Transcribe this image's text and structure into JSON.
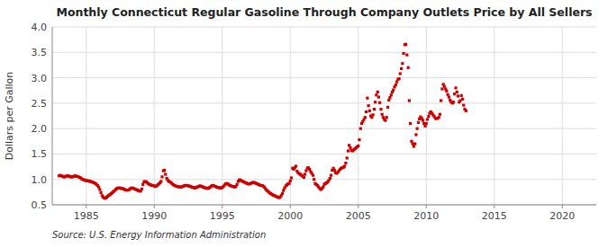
{
  "chart_data": {
    "type": "scatter",
    "title": "Monthly Connecticut Regular Gasoline Through Company Outlets Price by All Sellers",
    "y_label": "Dollars per Gallon",
    "annotations": [
      "Source: U.S. Energy Information Administration"
    ],
    "color": "#cc0000",
    "marker": "square",
    "grid": true,
    "xlim": [
      1982.5,
      2022.5
    ],
    "ylim": [
      0.5,
      4.0
    ],
    "xticks": [
      1985,
      1990,
      1995,
      2000,
      2005,
      2010,
      2015,
      2020
    ],
    "yticks": [
      0.5,
      {
        "value": 1.0,
        "label": "1.0"
      },
      1.5,
      {
        "value": 2.0,
        "label": "2.0"
      },
      2.5,
      {
        "value": 3.0,
        "label": "3.0"
      },
      3.5,
      {
        "value": 4.0,
        "label": "4.0"
      }
    ],
    "x": [
      1983.0,
      1983.08,
      1983.17,
      1983.25,
      1983.33,
      1983.42,
      1983.5,
      1983.58,
      1983.67,
      1983.75,
      1983.83,
      1983.92,
      1984.0,
      1984.08,
      1984.17,
      1984.25,
      1984.33,
      1984.42,
      1984.5,
      1984.58,
      1984.67,
      1984.75,
      1984.83,
      1984.92,
      1985.0,
      1985.08,
      1985.17,
      1985.25,
      1985.33,
      1985.42,
      1985.5,
      1985.58,
      1985.67,
      1985.75,
      1985.83,
      1985.92,
      1986.0,
      1986.08,
      1986.17,
      1986.25,
      1986.33,
      1986.42,
      1986.5,
      1986.58,
      1986.67,
      1986.75,
      1986.83,
      1986.92,
      1987.0,
      1987.08,
      1987.17,
      1987.25,
      1987.33,
      1987.42,
      1987.5,
      1987.58,
      1987.67,
      1987.75,
      1987.83,
      1987.92,
      1988.0,
      1988.08,
      1988.17,
      1988.25,
      1988.33,
      1988.42,
      1988.5,
      1988.58,
      1988.67,
      1988.75,
      1988.83,
      1988.92,
      1989.0,
      1989.08,
      1989.17,
      1989.25,
      1989.33,
      1989.42,
      1989.5,
      1989.58,
      1989.67,
      1989.75,
      1989.83,
      1989.92,
      1990.0,
      1990.08,
      1990.17,
      1990.25,
      1990.33,
      1990.42,
      1990.5,
      1990.58,
      1990.67,
      1990.75,
      1990.83,
      1990.92,
      1991.0,
      1991.08,
      1991.17,
      1991.25,
      1991.33,
      1991.42,
      1991.5,
      1991.58,
      1991.67,
      1991.75,
      1991.83,
      1991.92,
      1992.0,
      1992.08,
      1992.17,
      1992.25,
      1992.33,
      1992.42,
      1992.5,
      1992.58,
      1992.67,
      1992.75,
      1992.83,
      1992.92,
      1993.0,
      1993.08,
      1993.17,
      1993.25,
      1993.33,
      1993.42,
      1993.5,
      1993.58,
      1993.67,
      1993.75,
      1993.83,
      1993.92,
      1994.0,
      1994.08,
      1994.17,
      1994.25,
      1994.33,
      1994.42,
      1994.5,
      1994.58,
      1994.67,
      1994.75,
      1994.83,
      1994.92,
      1995.0,
      1995.08,
      1995.17,
      1995.25,
      1995.33,
      1995.42,
      1995.5,
      1995.58,
      1995.67,
      1995.75,
      1995.83,
      1995.92,
      1996.0,
      1996.08,
      1996.17,
      1996.25,
      1996.33,
      1996.42,
      1996.5,
      1996.58,
      1996.67,
      1996.75,
      1996.83,
      1996.92,
      1997.0,
      1997.08,
      1997.17,
      1997.25,
      1997.33,
      1997.42,
      1997.5,
      1997.58,
      1997.67,
      1997.75,
      1997.83,
      1997.92,
      1998.0,
      1998.08,
      1998.17,
      1998.25,
      1998.33,
      1998.42,
      1998.5,
      1998.58,
      1998.67,
      1998.75,
      1998.83,
      1998.92,
      1999.0,
      1999.08,
      1999.17,
      1999.25,
      1999.33,
      1999.42,
      1999.5,
      1999.58,
      1999.67,
      1999.75,
      1999.83,
      1999.92,
      2000.0,
      2000.08,
      2000.17,
      2000.25,
      2000.33,
      2000.42,
      2000.5,
      2000.58,
      2000.67,
      2000.75,
      2000.83,
      2000.92,
      2001.0,
      2001.08,
      2001.17,
      2001.25,
      2001.33,
      2001.42,
      2001.5,
      2001.58,
      2001.67,
      2001.75,
      2001.83,
      2001.92,
      2002.0,
      2002.08,
      2002.17,
      2002.25,
      2002.33,
      2002.42,
      2002.5,
      2002.58,
      2002.67,
      2002.75,
      2002.83,
      2002.92,
      2003.0,
      2003.08,
      2003.17,
      2003.25,
      2003.33,
      2003.42,
      2003.5,
      2003.58,
      2003.67,
      2003.75,
      2003.83,
      2003.92,
      2004.0,
      2004.08,
      2004.17,
      2004.25,
      2004.33,
      2004.42,
      2004.5,
      2004.58,
      2004.67,
      2004.75,
      2004.83,
      2004.92,
      2005.0,
      2005.08,
      2005.17,
      2005.25,
      2005.33,
      2005.42,
      2005.5,
      2005.58,
      2005.67,
      2005.75,
      2005.83,
      2005.92,
      2006.0,
      2006.08,
      2006.17,
      2006.25,
      2006.33,
      2006.42,
      2006.5,
      2006.58,
      2006.67,
      2006.75,
      2006.83,
      2006.92,
      2007.0,
      2007.08,
      2007.17,
      2007.25,
      2007.33,
      2007.42,
      2007.5,
      2007.58,
      2007.67,
      2007.75,
      2007.83,
      2007.92,
      2008.0,
      2008.08,
      2008.17,
      2008.25,
      2008.33,
      2008.42,
      2008.5,
      2008.58,
      2008.67,
      2008.75,
      2008.83,
      2008.92,
      2009.0,
      2009.08,
      2009.17,
      2009.25,
      2009.33,
      2009.42,
      2009.5,
      2009.58,
      2009.67,
      2009.75,
      2009.83,
      2009.92,
      2010.0,
      2010.08,
      2010.17,
      2010.25,
      2010.33,
      2010.42,
      2010.5,
      2010.58,
      2010.67,
      2010.75,
      2010.83,
      2010.92,
      2011.0,
      2011.08,
      2011.17,
      2011.25,
      2011.33,
      2011.42,
      2011.5,
      2011.58,
      2011.67,
      2011.75,
      2011.83,
      2011.92,
      2012.0,
      2012.08,
      2012.17,
      2012.25,
      2012.33,
      2012.42,
      2012.5,
      2012.58,
      2012.67,
      2012.75,
      2012.83,
      2012.92
    ],
    "values": [
      1.07,
      1.08,
      1.07,
      1.06,
      1.05,
      1.05,
      1.06,
      1.07,
      1.07,
      1.06,
      1.05,
      1.05,
      1.05,
      1.06,
      1.07,
      1.06,
      1.06,
      1.05,
      1.04,
      1.03,
      1.01,
      1.0,
      0.99,
      0.98,
      0.98,
      0.97,
      0.97,
      0.96,
      0.96,
      0.95,
      0.94,
      0.93,
      0.92,
      0.9,
      0.88,
      0.85,
      0.8,
      0.74,
      0.68,
      0.65,
      0.63,
      0.63,
      0.65,
      0.67,
      0.69,
      0.7,
      0.72,
      0.74,
      0.76,
      0.78,
      0.8,
      0.82,
      0.83,
      0.83,
      0.83,
      0.82,
      0.82,
      0.81,
      0.8,
      0.79,
      0.79,
      0.79,
      0.8,
      0.82,
      0.83,
      0.83,
      0.82,
      0.81,
      0.8,
      0.79,
      0.78,
      0.77,
      0.77,
      0.81,
      0.9,
      0.95,
      0.96,
      0.95,
      0.93,
      0.91,
      0.9,
      0.89,
      0.88,
      0.88,
      0.87,
      0.86,
      0.87,
      0.89,
      0.91,
      0.93,
      0.96,
      1.05,
      1.17,
      1.18,
      1.1,
      1.02,
      0.98,
      0.96,
      0.95,
      0.93,
      0.91,
      0.89,
      0.88,
      0.87,
      0.86,
      0.86,
      0.85,
      0.85,
      0.85,
      0.86,
      0.87,
      0.88,
      0.88,
      0.88,
      0.87,
      0.87,
      0.86,
      0.85,
      0.84,
      0.84,
      0.83,
      0.84,
      0.85,
      0.86,
      0.87,
      0.87,
      0.86,
      0.85,
      0.84,
      0.83,
      0.83,
      0.82,
      0.83,
      0.84,
      0.86,
      0.88,
      0.88,
      0.87,
      0.86,
      0.85,
      0.84,
      0.84,
      0.83,
      0.83,
      0.84,
      0.86,
      0.89,
      0.91,
      0.92,
      0.91,
      0.89,
      0.88,
      0.87,
      0.86,
      0.86,
      0.85,
      0.86,
      0.9,
      0.96,
      0.99,
      0.99,
      0.97,
      0.96,
      0.95,
      0.94,
      0.93,
      0.92,
      0.91,
      0.91,
      0.92,
      0.93,
      0.94,
      0.94,
      0.93,
      0.92,
      0.91,
      0.9,
      0.89,
      0.88,
      0.88,
      0.87,
      0.85,
      0.82,
      0.79,
      0.77,
      0.75,
      0.73,
      0.72,
      0.7,
      0.69,
      0.68,
      0.67,
      0.66,
      0.65,
      0.64,
      0.65,
      0.68,
      0.72,
      0.78,
      0.83,
      0.87,
      0.89,
      0.91,
      0.92,
      0.97,
      1.03,
      1.22,
      1.2,
      1.23,
      1.26,
      1.16,
      1.13,
      1.11,
      1.1,
      1.08,
      1.06,
      1.04,
      1.1,
      1.17,
      1.22,
      1.23,
      1.2,
      1.15,
      1.12,
      1.08,
      1.0,
      0.92,
      0.9,
      0.88,
      0.85,
      0.82,
      0.8,
      0.82,
      0.85,
      0.9,
      0.92,
      0.93,
      0.95,
      0.98,
      1.02,
      1.08,
      1.18,
      1.22,
      1.18,
      1.13,
      1.12,
      1.14,
      1.17,
      1.2,
      1.22,
      1.23,
      1.24,
      1.26,
      1.32,
      1.42,
      1.56,
      1.67,
      1.62,
      1.57,
      1.56,
      1.58,
      1.6,
      1.62,
      1.64,
      1.66,
      1.78,
      2.0,
      2.1,
      2.14,
      2.18,
      2.22,
      2.33,
      2.6,
      2.45,
      2.35,
      2.25,
      2.22,
      2.27,
      2.38,
      2.52,
      2.66,
      2.72,
      2.62,
      2.51,
      2.38,
      2.28,
      2.22,
      2.18,
      2.16,
      2.22,
      2.42,
      2.56,
      2.61,
      2.66,
      2.72,
      2.76,
      2.82,
      2.86,
      2.92,
      2.97,
      2.98,
      3.08,
      3.18,
      3.28,
      3.48,
      3.65,
      3.66,
      3.45,
      3.2,
      2.55,
      2.1,
      1.75,
      1.7,
      1.65,
      1.7,
      1.88,
      2.0,
      2.12,
      2.19,
      2.23,
      2.2,
      2.16,
      2.1,
      2.05,
      2.1,
      2.18,
      2.24,
      2.3,
      2.33,
      2.3,
      2.27,
      2.24,
      2.2,
      2.2,
      2.2,
      2.22,
      2.28,
      2.55,
      2.78,
      2.87,
      2.83,
      2.78,
      2.74,
      2.67,
      2.62,
      2.56,
      2.52,
      2.5,
      2.52,
      2.68,
      2.8,
      2.72,
      2.64,
      2.52,
      2.55,
      2.65,
      2.58,
      2.46,
      2.38,
      2.35
    ]
  }
}
